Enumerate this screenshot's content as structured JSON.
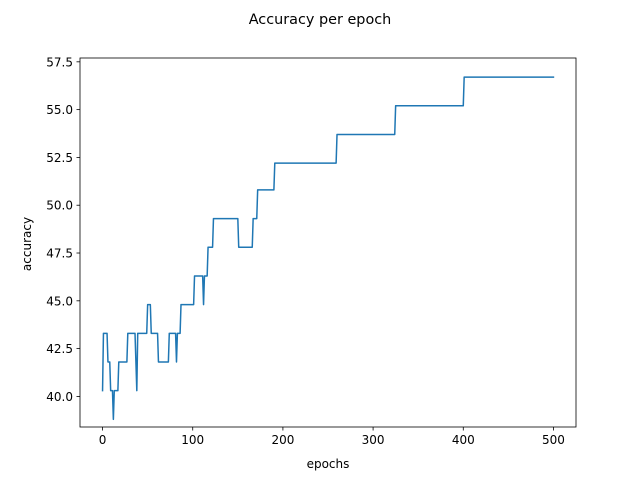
{
  "chart_data": {
    "type": "line",
    "title": "Accuracy per epoch",
    "xlabel": "epochs",
    "ylabel": "accuracy",
    "xlim": [
      -25,
      525
    ],
    "ylim": [
      38.4,
      57.7
    ],
    "xticks": [
      0,
      100,
      200,
      300,
      400,
      500
    ],
    "xtick_labels": [
      "0",
      "100",
      "200",
      "300",
      "400",
      "500"
    ],
    "yticks": [
      40.0,
      42.5,
      45.0,
      47.5,
      50.0,
      52.5,
      55.0,
      57.5
    ],
    "ytick_labels": [
      "40.0",
      "42.5",
      "45.0",
      "47.5",
      "50.0",
      "52.5",
      "55.0",
      "57.5"
    ],
    "grid": false,
    "legend": "none",
    "colors": {
      "line": "#1f77b4",
      "axes": "#000000",
      "background": "#ffffff"
    },
    "series": [
      {
        "values": [
          [
            0,
            40.3
          ],
          [
            1,
            43.3
          ],
          [
            5,
            43.3
          ],
          [
            6,
            41.8
          ],
          [
            8,
            41.8
          ],
          [
            9,
            40.3
          ],
          [
            11,
            40.3
          ],
          [
            12,
            38.8
          ],
          [
            13,
            40.3
          ],
          [
            17,
            40.3
          ],
          [
            18,
            41.8
          ],
          [
            27,
            41.8
          ],
          [
            28,
            43.3
          ],
          [
            36,
            43.3
          ],
          [
            37,
            41.8
          ],
          [
            38,
            40.3
          ],
          [
            39,
            43.3
          ],
          [
            49,
            43.3
          ],
          [
            50,
            44.8
          ],
          [
            53,
            44.8
          ],
          [
            54,
            43.3
          ],
          [
            61,
            43.3
          ],
          [
            62,
            41.8
          ],
          [
            73,
            41.8
          ],
          [
            74,
            43.3
          ],
          [
            81,
            43.3
          ],
          [
            82,
            41.8
          ],
          [
            83,
            43.3
          ],
          [
            86,
            43.3
          ],
          [
            87,
            44.8
          ],
          [
            101,
            44.8
          ],
          [
            102,
            46.3
          ],
          [
            111,
            46.3
          ],
          [
            112,
            44.8
          ],
          [
            113,
            46.3
          ],
          [
            116,
            46.3
          ],
          [
            117,
            47.8
          ],
          [
            122,
            47.8
          ],
          [
            123,
            49.3
          ],
          [
            150,
            49.3
          ],
          [
            151,
            47.8
          ],
          [
            166,
            47.8
          ],
          [
            167,
            49.3
          ],
          [
            171,
            49.3
          ],
          [
            172,
            50.8
          ],
          [
            190,
            50.8
          ],
          [
            191,
            52.2
          ],
          [
            259,
            52.2
          ],
          [
            260,
            53.7
          ],
          [
            324,
            53.7
          ],
          [
            325,
            55.2
          ],
          [
            400,
            55.2
          ],
          [
            401,
            56.7
          ],
          [
            500,
            56.7
          ]
        ]
      }
    ]
  }
}
